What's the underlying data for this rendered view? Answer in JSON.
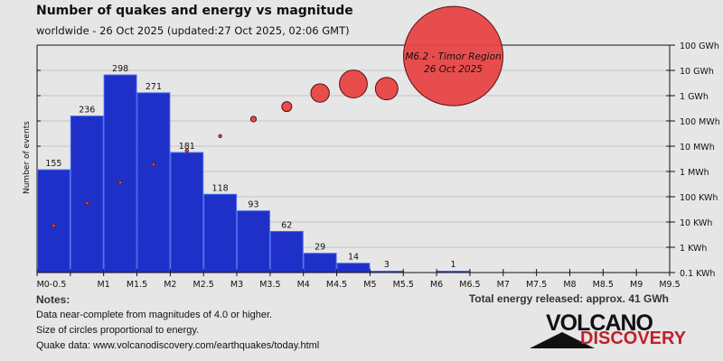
{
  "chart_data": {
    "type": "bar",
    "title": "Number of quakes and energy vs magnitude",
    "subtitle": "worldwide - 26 Oct 2025 (updated:27 Oct 2025, 02:06 GMT)",
    "ylabel": "Number of events",
    "x_tick_labels": [
      "M0-0.5",
      "",
      "M1",
      "M1.5",
      "M2",
      "M2.5",
      "M3",
      "M3.5",
      "M4",
      "M4.5",
      "M5",
      "M5.5",
      "M6",
      "M6.5",
      "M7",
      "M7.5",
      "M8",
      "M8.5",
      "M9",
      "M9.5"
    ],
    "bins": [
      "0-0.5",
      "0.5-1",
      "1-1.5",
      "1.5-2",
      "2-2.5",
      "2.5-3",
      "3-3.5",
      "3.5-4",
      "4-4.5",
      "4.5-5",
      "5-5.5",
      "5.5-6",
      "6-6.5"
    ],
    "counts": [
      155,
      236,
      298,
      271,
      181,
      118,
      93,
      62,
      29,
      14,
      3,
      0,
      1
    ],
    "ylim": [
      0,
      343
    ],
    "energy_series": {
      "unit": "Wh",
      "values": [
        7200,
        56000,
        370000,
        1900000,
        6600000,
        25000000,
        118000000,
        370000000,
        1270000000,
        2900000000,
        1900000000,
        null,
        37000000000
      ],
      "scale": "log",
      "ylim": [
        100,
        100000000000
      ],
      "tick_labels": [
        "100 GWh",
        "10 GWh",
        "1 GWh",
        "100 MWh",
        "10 MWh",
        "1 MWh",
        "100 KWh",
        "10 KWh",
        "1 KWh",
        "0.1 KWh"
      ]
    },
    "annotation": {
      "line1": "M6.2 - Timor Region",
      "line2": "26 Oct 2025"
    },
    "grid": true,
    "colors": {
      "bar": "#1f30c8",
      "bar_border": "#4466ee",
      "bubble": "#e84444",
      "bubble_border": "#5a1010",
      "background": "#e6e6e6"
    }
  },
  "notes": {
    "heading": "Notes:",
    "lines": [
      "Data near-complete from magnitudes of 4.0 or higher.",
      "Size of circles proportional to energy.",
      "Quake data: www.volcanodiscovery.com/earthquakes/today.html"
    ]
  },
  "total_energy": "Total energy released: approx. 41 GWh",
  "logo": {
    "line1": "VOLCANO",
    "line2": "DISCOVERY"
  }
}
